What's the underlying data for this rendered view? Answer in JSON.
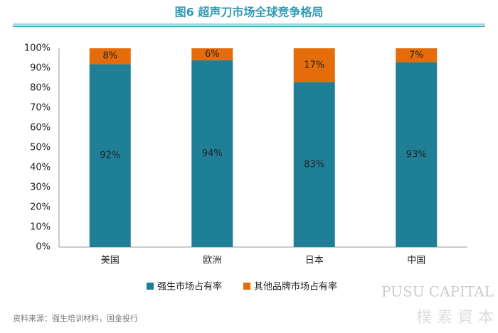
{
  "chart_data": {
    "type": "stacked-bar",
    "title": "图6 超声刀市场全球竞争格局",
    "categories": [
      "美国",
      "欧洲",
      "日本",
      "中国"
    ],
    "series": [
      {
        "name": "强生市场占有率",
        "color": "#1f7f97",
        "values": [
          92,
          94,
          83,
          93
        ],
        "value_labels": [
          "92%",
          "94%",
          "83%",
          "93%"
        ]
      },
      {
        "name": "其他品牌市场占有率",
        "color": "#e46c0a",
        "values": [
          8,
          6,
          17,
          7
        ],
        "value_labels": [
          "8%",
          "6%",
          "17%",
          "7%"
        ]
      }
    ],
    "ylim": [
      0,
      100
    ],
    "yticks": [
      {
        "value": 0,
        "label": "0%"
      },
      {
        "value": 10,
        "label": "10%"
      },
      {
        "value": 20,
        "label": "20%"
      },
      {
        "value": 30,
        "label": "30%"
      },
      {
        "value": 40,
        "label": "40%"
      },
      {
        "value": 50,
        "label": "50%"
      },
      {
        "value": 60,
        "label": "60%"
      },
      {
        "value": 70,
        "label": "70%"
      },
      {
        "value": 80,
        "label": "80%"
      },
      {
        "value": 90,
        "label": "90%"
      },
      {
        "value": 100,
        "label": "100%"
      }
    ],
    "grid": false,
    "legend": "bottom",
    "source": "资料来源：强生培训材料，国金投行",
    "watermark": [
      "PUSU CAPITAL",
      "樸 素 資 本"
    ]
  }
}
